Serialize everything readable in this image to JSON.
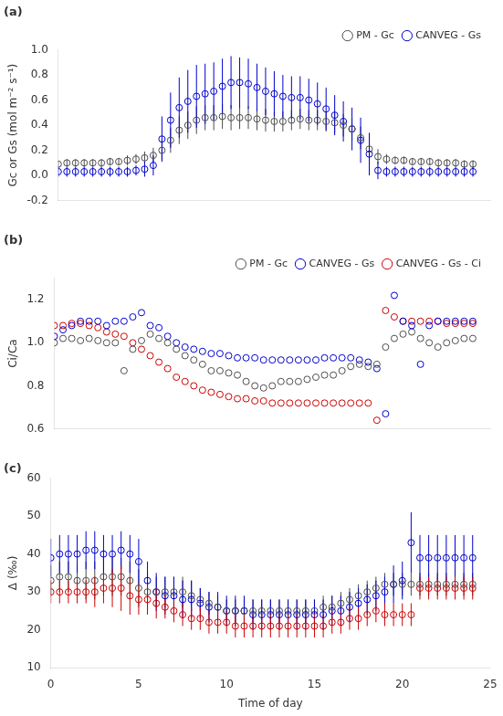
{
  "chart_data": [
    {
      "type": "scatter",
      "title": "(a)",
      "ylabel": "Gc or Gs (mol m⁻² s⁻¹)",
      "xlim": [
        0,
        25
      ],
      "xticks": [
        0,
        5,
        10,
        15,
        20,
        25
      ],
      "ylim": [
        -0.2,
        1.0
      ],
      "yticks": [
        -0.2,
        {
          "value": 0,
          "label": "0.0"
        },
        0.2,
        0.4,
        0.6,
        0.8,
        {
          "value": 1.0,
          "label": "1.0"
        }
      ],
      "grid": false,
      "legend": "upper right",
      "tick_labels": "y",
      "marker": "circle",
      "line_style": "none",
      "x": [
        0,
        0.5,
        1,
        1.5,
        2,
        2.5,
        3,
        3.5,
        4,
        4.5,
        5,
        5.5,
        6,
        6.5,
        7,
        7.5,
        8,
        8.5,
        9,
        9.5,
        10,
        10.5,
        11,
        11.5,
        12,
        12.5,
        13,
        13.5,
        14,
        14.5,
        15,
        15.5,
        16,
        16.5,
        17,
        17.5,
        18,
        18.5,
        19,
        19.5,
        20,
        20.5,
        21,
        21.5,
        22,
        22.5,
        23,
        23.5,
        24
      ],
      "series": [
        {
          "name": "PM - Gc",
          "color": "#4d4d4d",
          "values": [
            0.09,
            0.1,
            0.1,
            0.1,
            0.1,
            0.1,
            0.11,
            0.11,
            0.12,
            0.13,
            0.14,
            0.16,
            0.2,
            0.28,
            0.36,
            0.4,
            0.44,
            0.46,
            0.46,
            0.47,
            0.46,
            0.46,
            0.46,
            0.45,
            0.44,
            0.43,
            0.43,
            0.44,
            0.45,
            0.44,
            0.44,
            0.43,
            0.42,
            0.4,
            0.37,
            0.3,
            0.21,
            0.15,
            0.13,
            0.12,
            0.12,
            0.11,
            0.11,
            0.11,
            0.1,
            0.1,
            0.1,
            0.09,
            0.09
          ],
          "yerr": [
            0.03,
            0.03,
            0.03,
            0.03,
            0.03,
            0.03,
            0.03,
            0.03,
            0.04,
            0.04,
            0.05,
            0.06,
            0.08,
            0.1,
            0.11,
            0.11,
            0.11,
            0.1,
            0.1,
            0.1,
            0.1,
            0.09,
            0.09,
            0.09,
            0.09,
            0.08,
            0.08,
            0.08,
            0.08,
            0.08,
            0.08,
            0.08,
            0.08,
            0.09,
            0.09,
            0.09,
            0.08,
            0.06,
            0.04,
            0.03,
            0.03,
            0.03,
            0.03,
            0.03,
            0.03,
            0.03,
            0.03,
            0.03,
            0.03
          ]
        },
        {
          "name": "CANVEG - Gs",
          "color": "#0000cd",
          "values": [
            0.03,
            0.03,
            0.03,
            0.03,
            0.03,
            0.03,
            0.03,
            0.03,
            0.03,
            0.04,
            0.05,
            0.08,
            0.29,
            0.44,
            0.54,
            0.59,
            0.63,
            0.65,
            0.67,
            0.71,
            0.74,
            0.74,
            0.73,
            0.7,
            0.67,
            0.65,
            0.63,
            0.62,
            0.62,
            0.6,
            0.57,
            0.53,
            0.48,
            0.43,
            0.37,
            0.28,
            0.17,
            0.04,
            0.03,
            0.03,
            0.03,
            0.03,
            0.03,
            0.03,
            0.03,
            0.03,
            0.03,
            0.03,
            0.03
          ],
          "yerr": [
            0.04,
            0.04,
            0.04,
            0.04,
            0.04,
            0.04,
            0.04,
            0.04,
            0.04,
            0.04,
            0.06,
            0.08,
            0.18,
            0.22,
            0.24,
            0.25,
            0.25,
            0.24,
            0.23,
            0.22,
            0.21,
            0.2,
            0.2,
            0.19,
            0.19,
            0.18,
            0.17,
            0.17,
            0.17,
            0.17,
            0.17,
            0.17,
            0.16,
            0.16,
            0.17,
            0.18,
            0.17,
            0.07,
            0.04,
            0.04,
            0.04,
            0.04,
            0.04,
            0.04,
            0.04,
            0.04,
            0.04,
            0.04,
            0.04
          ]
        }
      ]
    },
    {
      "type": "scatter",
      "title": "(b)",
      "ylabel": "Ci/Ca",
      "xlim": [
        0,
        25
      ],
      "xticks": [
        0,
        5,
        10,
        15,
        20,
        25
      ],
      "ylim": [
        0.6,
        1.3
      ],
      "yticks": [
        0.6,
        0.8,
        {
          "value": 1.0,
          "label": "1.0"
        },
        1.2
      ],
      "grid": false,
      "legend": "upper right",
      "tick_labels": "y",
      "marker": "circle",
      "line_style": "none",
      "x": [
        0,
        0.5,
        1,
        1.5,
        2,
        2.5,
        3,
        3.5,
        4,
        4.5,
        5,
        5.5,
        6,
        6.5,
        7,
        7.5,
        8,
        8.5,
        9,
        9.5,
        10,
        10.5,
        11,
        11.5,
        12,
        12.5,
        13,
        13.5,
        14,
        14.5,
        15,
        15.5,
        16,
        16.5,
        17,
        17.5,
        18,
        18.5,
        19,
        19.5,
        20,
        20.5,
        21,
        21.5,
        22,
        22.5,
        23,
        23.5,
        24
      ],
      "series": [
        {
          "name": "PM - Gc",
          "color": "#4d4d4d",
          "values": [
            1.0,
            1.02,
            1.02,
            1.01,
            1.02,
            1.01,
            1.0,
            1.0,
            0.87,
            0.97,
            1.01,
            1.04,
            1.02,
            1.0,
            0.97,
            0.94,
            0.92,
            0.9,
            0.87,
            0.87,
            0.86,
            0.85,
            0.82,
            0.8,
            0.79,
            0.8,
            0.82,
            0.82,
            0.82,
            0.83,
            0.84,
            0.85,
            0.85,
            0.87,
            0.89,
            0.9,
            0.89,
            0.9,
            0.98,
            1.02,
            1.04,
            1.05,
            1.02,
            1.0,
            0.98,
            1.0,
            1.01,
            1.02,
            1.02
          ]
        },
        {
          "name": "CANVEG - Gs",
          "color": "#0000cd",
          "values": [
            1.03,
            1.06,
            1.08,
            1.1,
            1.1,
            1.1,
            1.08,
            1.1,
            1.1,
            1.12,
            1.14,
            1.08,
            1.07,
            1.03,
            1.0,
            0.98,
            0.97,
            0.96,
            0.95,
            0.95,
            0.94,
            0.93,
            0.93,
            0.93,
            0.92,
            0.92,
            0.92,
            0.92,
            0.92,
            0.92,
            0.92,
            0.93,
            0.93,
            0.93,
            0.93,
            0.92,
            0.91,
            0.88,
            0.67,
            1.22,
            1.1,
            1.08,
            0.9,
            1.08,
            1.1,
            1.1,
            1.1,
            1.1,
            1.1
          ]
        },
        {
          "name": "CANVEG - Gs - Ci",
          "color": "#cc0000",
          "values": [
            1.08,
            1.08,
            1.09,
            1.09,
            1.08,
            1.07,
            1.05,
            1.04,
            1.03,
            1.0,
            0.97,
            0.94,
            0.91,
            0.88,
            0.84,
            0.82,
            0.8,
            0.78,
            0.77,
            0.76,
            0.75,
            0.74,
            0.74,
            0.73,
            0.73,
            0.72,
            0.72,
            0.72,
            0.72,
            0.72,
            0.72,
            0.72,
            0.72,
            0.72,
            0.72,
            0.72,
            0.72,
            0.64,
            1.15,
            1.12,
            1.1,
            1.1,
            1.1,
            1.1,
            1.1,
            1.09,
            1.09,
            1.09,
            1.09
          ]
        }
      ]
    },
    {
      "type": "scatter",
      "title": "(c)",
      "ylabel": "Δ (‰)",
      "xlabel": "Time of day",
      "xlim": [
        0,
        25
      ],
      "xticks": [
        0,
        5,
        10,
        15,
        20,
        25
      ],
      "ylim": [
        10,
        60
      ],
      "yticks": [
        10,
        20,
        30,
        40,
        50,
        60
      ],
      "grid": false,
      "marker": "circle",
      "line_style": "none",
      "x": [
        0,
        0.5,
        1,
        1.5,
        2,
        2.5,
        3,
        3.5,
        4,
        4.5,
        5,
        5.5,
        6,
        6.5,
        7,
        7.5,
        8,
        8.5,
        9,
        9.5,
        10,
        10.5,
        11,
        11.5,
        12,
        12.5,
        13,
        13.5,
        14,
        14.5,
        15,
        15.5,
        16,
        16.5,
        17,
        17.5,
        18,
        18.5,
        19,
        19.5,
        20,
        20.5,
        21,
        21.5,
        22,
        22.5,
        23,
        23.5,
        24
      ],
      "series": [
        {
          "name": "PM - Gc",
          "color": "#4d4d4d",
          "values": [
            33,
            34,
            34,
            33,
            33,
            33,
            34,
            34,
            34,
            33,
            31,
            30,
            30,
            30,
            30,
            30,
            29,
            28,
            27,
            26,
            25,
            25,
            25,
            25,
            25,
            25,
            25,
            25,
            25,
            25,
            25,
            26,
            26,
            27,
            28,
            29,
            30,
            31,
            32,
            32,
            32,
            32,
            32,
            32,
            32,
            32,
            32,
            32,
            32
          ],
          "yerr": [
            4,
            4,
            4,
            4,
            5,
            5,
            5,
            5,
            5,
            5,
            5,
            5,
            4,
            4,
            4,
            4,
            4,
            3,
            3,
            3,
            3,
            3,
            3,
            3,
            3,
            3,
            3,
            3,
            3,
            3,
            3,
            3,
            3,
            3,
            3,
            3,
            3,
            3,
            3,
            3,
            3,
            3,
            3,
            3,
            3,
            3,
            3,
            3,
            3
          ]
        },
        {
          "name": "CANVEG - Gs",
          "color": "#0000cd",
          "values": [
            39,
            40,
            40,
            40,
            41,
            41,
            40,
            40,
            41,
            40,
            38,
            33,
            30,
            29,
            29,
            28,
            28,
            27,
            26,
            26,
            25,
            25,
            25,
            24,
            24,
            24,
            24,
            24,
            24,
            24,
            24,
            24,
            25,
            25,
            26,
            27,
            28,
            29,
            30,
            32,
            33,
            43,
            39,
            39,
            39,
            39,
            39,
            39,
            39
          ],
          "yerr": [
            5,
            5,
            5,
            5,
            5,
            5,
            5,
            5,
            5,
            5,
            6,
            5,
            5,
            5,
            5,
            5,
            5,
            4,
            4,
            4,
            4,
            4,
            4,
            4,
            4,
            4,
            4,
            4,
            4,
            4,
            4,
            4,
            4,
            4,
            4,
            4,
            4,
            4,
            4,
            5,
            5,
            8,
            6,
            6,
            6,
            6,
            6,
            6,
            6
          ]
        },
        {
          "name": "CANVEG - Gs - Ci",
          "color": "#cc0000",
          "values": [
            30,
            30,
            30,
            30,
            30,
            30,
            31,
            31,
            31,
            29,
            28,
            28,
            27,
            26,
            25,
            24,
            23,
            23,
            22,
            22,
            22,
            21,
            21,
            21,
            21,
            21,
            21,
            21,
            21,
            21,
            21,
            21,
            22,
            22,
            23,
            23,
            24,
            25,
            24,
            24,
            24,
            24,
            31,
            31,
            31,
            31,
            31,
            31,
            31
          ],
          "yerr": [
            3,
            3,
            3,
            3,
            3,
            4,
            4,
            5,
            6,
            5,
            4,
            4,
            4,
            3,
            3,
            3,
            3,
            3,
            3,
            3,
            3,
            3,
            3,
            3,
            3,
            3,
            3,
            3,
            3,
            3,
            3,
            3,
            3,
            3,
            3,
            3,
            3,
            3,
            3,
            3,
            3,
            3,
            3,
            3,
            3,
            3,
            3,
            3,
            3
          ]
        }
      ]
    }
  ]
}
